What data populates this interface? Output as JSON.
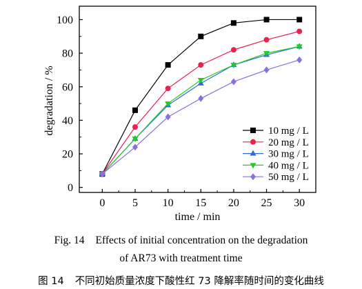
{
  "chart_data": {
    "type": "line",
    "x": [
      0,
      5,
      10,
      15,
      20,
      25,
      30
    ],
    "xticks": [
      0,
      5,
      10,
      15,
      20,
      25,
      30
    ],
    "yticks": [
      0,
      20,
      40,
      60,
      80,
      100
    ],
    "xlim": [
      -3.5,
      32.5
    ],
    "ylim": [
      -3,
      108
    ],
    "xlabel": "time / min",
    "ylabel": "degradation / %",
    "grid": false,
    "legend_position": "right",
    "series": [
      {
        "name": "10 mg / L",
        "marker": "square",
        "color": "#000000",
        "values": [
          8,
          46,
          73,
          90,
          98,
          100,
          100
        ]
      },
      {
        "name": "20 mg / L",
        "marker": "circle",
        "color": "#e8234e",
        "values": [
          8,
          36,
          59,
          73,
          82,
          88,
          93
        ]
      },
      {
        "name": "30 mg / L",
        "marker": "triangle-up",
        "color": "#2f6bd8",
        "values": [
          8,
          29,
          49,
          62,
          73,
          79,
          84
        ]
      },
      {
        "name": "40 mg / L",
        "marker": "triangle-down",
        "color": "#22cc22",
        "values": [
          8,
          29,
          50,
          64,
          73,
          80,
          84
        ]
      },
      {
        "name": "50 mg / L",
        "marker": "diamond",
        "color": "#8a6fe0",
        "values": [
          8,
          24,
          42,
          53,
          63,
          70,
          76
        ]
      }
    ]
  },
  "caption": {
    "fig_label": "Fig. 14",
    "line1": "Effects of initial concentration on the degradation",
    "line2": "of AR73 with treatment time",
    "cn_fig_label": "图 14",
    "cn_text": "不同初始质量浓度下酸性红 73 降解率随时间的变化曲线"
  }
}
